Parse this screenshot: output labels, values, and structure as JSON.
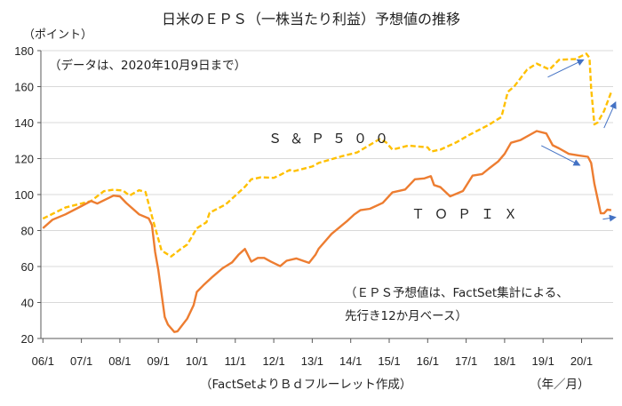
{
  "chart_data": {
    "type": "line",
    "title": "日米のＥＰＳ（一株当たり利益）予想値の推移",
    "ylabel": "（ポイント）",
    "xlabel": "（年／月）",
    "ylim": [
      20,
      180
    ],
    "yticks": [
      20,
      40,
      60,
      80,
      100,
      120,
      140,
      160,
      180
    ],
    "xticks": [
      "06/1",
      "07/1",
      "08/1",
      "09/1",
      "10/1",
      "11/1",
      "12/1",
      "13/1",
      "14/1",
      "15/1",
      "16/1",
      "17/1",
      "18/1",
      "19/1",
      "20/1"
    ],
    "xtick_dates": [
      "2006-01",
      "2007-01",
      "2008-01",
      "2009-01",
      "2010-01",
      "2011-01",
      "2012-01",
      "2013-01",
      "2014-01",
      "2015-01",
      "2016-01",
      "2017-01",
      "2018-01",
      "2019-01",
      "2020-01"
    ],
    "xlim": [
      "2006-01",
      "2020-10-09"
    ],
    "grid": true,
    "annotations": {
      "data_note": "（データは、2020年10月9日まで）",
      "eps_note_1": "（ＥＰＳ予想値は、FactSet集計による、",
      "eps_note_2": "先行き12か月ベース）",
      "source": "（FactSetよりＢｄフルーレット作成）"
    },
    "colors": {
      "sp500": "#FFC000",
      "topix": "#ED7D31",
      "arrow": "#4472C4",
      "grid": "#D9D9D9"
    },
    "arrows": [
      {
        "from": [
          "2019-02-15",
          165.3
        ],
        "to": [
          "2020-01-20",
          174.9
        ]
      },
      {
        "from": [
          "2018-12-15",
          127.2
        ],
        "to": [
          "2019-12-15",
          116.3
        ]
      },
      {
        "from": [
          "2020-08-01",
          137
        ],
        "to": [
          "2020-11-20",
          151.4
        ]
      },
      {
        "from": [
          "2020-07-20",
          86.3
        ],
        "to": [
          "2020-11-20",
          87.4
        ]
      }
    ],
    "series": [
      {
        "name": "Ｓ＆Ｐ５００",
        "style": "dashed",
        "points": [
          [
            "2006-01",
            86.6
          ],
          [
            "2006-08",
            92.8
          ],
          [
            "2007-04",
            96.4
          ],
          [
            "2007-08",
            101.9
          ],
          [
            "2007-11",
            102.7
          ],
          [
            "2008-02",
            102.2
          ],
          [
            "2008-04",
            99.4
          ],
          [
            "2008-07",
            102.4
          ],
          [
            "2008-09",
            101.4
          ],
          [
            "2008-11",
            87.9
          ],
          [
            "2009-02",
            68.9
          ],
          [
            "2009-05",
            65.6
          ],
          [
            "2009-08",
            69.8
          ],
          [
            "2009-10",
            72.2
          ],
          [
            "2010-01",
            81.3
          ],
          [
            "2010-04",
            84.6
          ],
          [
            "2010-05",
            89.9
          ],
          [
            "2010-10",
            94.5
          ],
          [
            "2011-01",
            99.4
          ],
          [
            "2011-04",
            104.3
          ],
          [
            "2011-06",
            108.5
          ],
          [
            "2011-09",
            109.6
          ],
          [
            "2012-01",
            109.3
          ],
          [
            "2012-03",
            110.9
          ],
          [
            "2012-06",
            113.7
          ],
          [
            "2012-07",
            112.9
          ],
          [
            "2012-10",
            114.2
          ],
          [
            "2013-01",
            115.6
          ],
          [
            "2013-03",
            117.6
          ],
          [
            "2013-10",
            121.2
          ],
          [
            "2014-03",
            123.4
          ],
          [
            "2014-10",
            130.8
          ],
          [
            "2014-12",
            129.1
          ],
          [
            "2015-02",
            125
          ],
          [
            "2015-07",
            127.2
          ],
          [
            "2016-01",
            126.2
          ],
          [
            "2016-02",
            123.9
          ],
          [
            "2016-05",
            125
          ],
          [
            "2016-10",
            129.1
          ],
          [
            "2017-02",
            133.2
          ],
          [
            "2017-08",
            138.7
          ],
          [
            "2017-12",
            143.1
          ],
          [
            "2018-02",
            157.1
          ],
          [
            "2018-04",
            160.1
          ],
          [
            "2018-08",
            169.5
          ],
          [
            "2018-11",
            172.8
          ],
          [
            "2019-03",
            169.5
          ],
          [
            "2019-06",
            174.9
          ],
          [
            "2019-11",
            175.3
          ],
          [
            "2020-02-15",
            178.3
          ],
          [
            "2020-03-15",
            176
          ],
          [
            "2020-04-01",
            158.8
          ],
          [
            "2020-05-01",
            139
          ],
          [
            "2020-06-01",
            140
          ],
          [
            "2020-08-01",
            146.4
          ],
          [
            "2020-10-09",
            157
          ]
        ]
      },
      {
        "name": "ＴＯＰＩＸ",
        "style": "solid",
        "points": [
          [
            "2006-01",
            81.3
          ],
          [
            "2006-04",
            86
          ],
          [
            "2006-08",
            89
          ],
          [
            "2007-01",
            93.6
          ],
          [
            "2007-04",
            96.4
          ],
          [
            "2007-06",
            95
          ],
          [
            "2007-11",
            99.4
          ],
          [
            "2008-01",
            99
          ],
          [
            "2008-03",
            95.3
          ],
          [
            "2008-07",
            89
          ],
          [
            "2008-10",
            86.7
          ],
          [
            "2008-11",
            83
          ],
          [
            "2008-12",
            68
          ],
          [
            "2009-01",
            58
          ],
          [
            "2009-03",
            31.9
          ],
          [
            "2009-04",
            27.7
          ],
          [
            "2009-06",
            23.6
          ],
          [
            "2009-07",
            24
          ],
          [
            "2009-10",
            31
          ],
          [
            "2009-12",
            38.5
          ],
          [
            "2010-01",
            45.9
          ],
          [
            "2010-03",
            49.5
          ],
          [
            "2010-06",
            54.4
          ],
          [
            "2010-09",
            59
          ],
          [
            "2010-12",
            62.3
          ],
          [
            "2011-02",
            66.5
          ],
          [
            "2011-04",
            69.8
          ],
          [
            "2011-06",
            62.7
          ],
          [
            "2011-08",
            64.8
          ],
          [
            "2011-10",
            64.8
          ],
          [
            "2011-12",
            62.8
          ],
          [
            "2012-03",
            60.2
          ],
          [
            "2012-05",
            63.2
          ],
          [
            "2012-08",
            64.5
          ],
          [
            "2012-12",
            62
          ],
          [
            "2013-02",
            66.5
          ],
          [
            "2013-03",
            69.9
          ],
          [
            "2013-07",
            78.1
          ],
          [
            "2013-12",
            85.5
          ],
          [
            "2014-02",
            88.8
          ],
          [
            "2014-04",
            91.3
          ],
          [
            "2014-07",
            92.1
          ],
          [
            "2014-11",
            95.4
          ],
          [
            "2015-02",
            101.2
          ],
          [
            "2015-06",
            102.8
          ],
          [
            "2015-09",
            108.5
          ],
          [
            "2015-12",
            109
          ],
          [
            "2016-02",
            110.2
          ],
          [
            "2016-03",
            105.3
          ],
          [
            "2016-05",
            104.1
          ],
          [
            "2016-08",
            99
          ],
          [
            "2016-12",
            102
          ],
          [
            "2017-03",
            110.5
          ],
          [
            "2017-06",
            111.4
          ],
          [
            "2017-08",
            114.3
          ],
          [
            "2017-11",
            118.4
          ],
          [
            "2018-01",
            122.6
          ],
          [
            "2018-03",
            128.8
          ],
          [
            "2018-06",
            130.3
          ],
          [
            "2018-11",
            135.3
          ],
          [
            "2019-02",
            134
          ],
          [
            "2019-04",
            127.4
          ],
          [
            "2019-06",
            125.7
          ],
          [
            "2019-09",
            122.6
          ],
          [
            "2019-12",
            121.8
          ],
          [
            "2020-03",
            121
          ],
          [
            "2020-04",
            117.6
          ],
          [
            "2020-05",
            106
          ],
          [
            "2020-07",
            89.6
          ],
          [
            "2020-08",
            89.6
          ],
          [
            "2020-09",
            91.6
          ],
          [
            "2020-10-09",
            91.3
          ]
        ]
      }
    ]
  }
}
